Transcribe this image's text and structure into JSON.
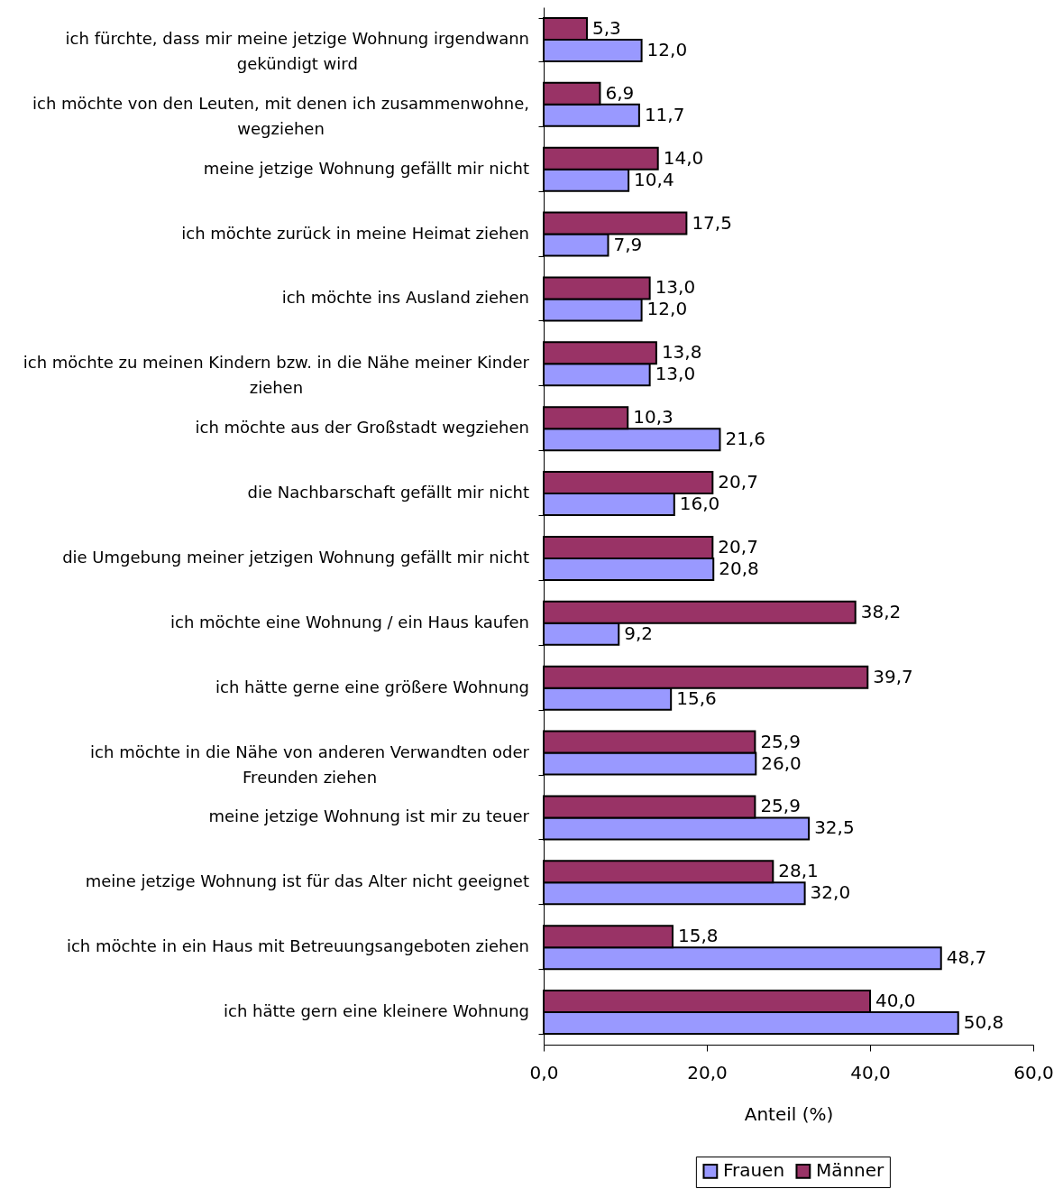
{
  "chart_data": {
    "type": "bar",
    "orientation": "horizontal",
    "categories": [
      "ich fürchte, dass mir meine jetzige Wohnung irgendwann gekündigt wird",
      "ich möchte von den Leuten, mit denen ich zusammenwohne, wegziehen",
      "meine jetzige Wohnung gefällt mir nicht",
      "ich möchte zurück in meine Heimat ziehen",
      "ich möchte ins Ausland ziehen",
      "ich möchte zu meinen Kindern bzw. in die Nähe meiner Kinder ziehen",
      "ich möchte aus der Großstadt wegziehen",
      "die Nachbarschaft gefällt mir nicht",
      "die Umgebung meiner jetzigen Wohnung gefällt mir nicht",
      "ich möchte eine Wohnung / ein Haus kaufen",
      "ich hätte gerne eine größere Wohnung",
      "ich möchte in die Nähe von anderen Verwandten oder Freunden ziehen",
      "meine jetzige Wohnung ist mir zu teuer",
      "meine jetzige Wohnung ist für das Alter nicht geeignet",
      "ich möchte in ein Haus mit Betreuungsangeboten ziehen",
      "ich hätte gern eine kleinere Wohnung"
    ],
    "series": [
      {
        "name": "Frauen",
        "color": "#9999ff",
        "values": [
          12.0,
          11.7,
          10.4,
          7.9,
          12.0,
          13.0,
          21.6,
          16.0,
          20.8,
          9.2,
          15.6,
          26.0,
          32.5,
          32.0,
          48.7,
          50.8
        ],
        "value_labels": [
          "12,0",
          "11,7",
          "10,4",
          "7,9",
          "12,0",
          "13,0",
          "21,6",
          "16,0",
          "20,8",
          "9,2",
          "15,6",
          "26,0",
          "32,5",
          "32,0",
          "48,7",
          "50,8"
        ]
      },
      {
        "name": "Männer",
        "color": "#993366",
        "values": [
          5.3,
          6.9,
          14.0,
          17.5,
          13.0,
          13.8,
          10.3,
          20.7,
          20.7,
          38.2,
          39.7,
          25.9,
          25.9,
          28.1,
          15.8,
          40.0
        ],
        "value_labels": [
          "5,3",
          "6,9",
          "14,0",
          "17,5",
          "13,0",
          "13,8",
          "10,3",
          "20,7",
          "20,7",
          "38,2",
          "39,7",
          "25,9",
          "25,9",
          "28,1",
          "15,8",
          "40,0"
        ]
      }
    ],
    "xlabel": "Anteil (%)",
    "xlim": [
      0,
      60
    ],
    "xticks": [
      {
        "value": 0,
        "label": "0,0"
      },
      {
        "value": 20,
        "label": "20,0"
      },
      {
        "value": 40,
        "label": "40,0"
      },
      {
        "value": 60,
        "label": "60,0"
      }
    ],
    "legend": "bottom"
  }
}
